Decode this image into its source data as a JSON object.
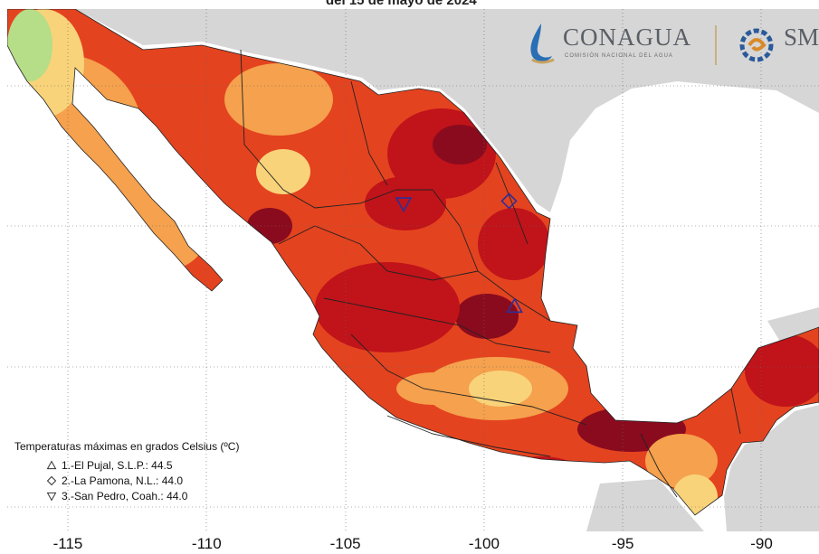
{
  "header": {
    "title_fragment": "del 15 de mayo de 2024"
  },
  "logos": {
    "conagua": {
      "name": "CONAGUA",
      "subtitle": "COMISIÓN NACIONAL DEL AGUA",
      "icon": "water-drop-icon"
    },
    "smn": {
      "name": "SMN",
      "icon": "sun-spiral-icon"
    }
  },
  "axis": {
    "longitude_ticks": [
      "-115",
      "-110",
      "-105",
      "-100",
      "-95",
      "-90"
    ]
  },
  "legend": {
    "title": "Temperaturas máximas en grados Celsius (ºC)",
    "items": [
      {
        "symbol": "triangle-up",
        "label": "1.-El Pujal, S.L.P.: 44.5",
        "lon": -98.9,
        "lat": 22.1
      },
      {
        "symbol": "diamond",
        "label": "2.-La Pamona, N.L.: 44.0",
        "lon": -99.1,
        "lat": 25.9
      },
      {
        "symbol": "triangle-down",
        "label": "3.-San Pedro, Coah.: 44.0",
        "lon": -102.9,
        "lat": 25.8
      }
    ]
  },
  "colors": {
    "ocean": "#ffffff",
    "land_outside": "#d6d6d6",
    "temp_low": "#b6dd88",
    "temp_mid_low": "#f8d37a",
    "temp_mid": "#f5a14d",
    "temp_high": "#e4431f",
    "temp_very_high": "#c1131a",
    "temp_extreme": "#8a0b1e",
    "marker": "#2c2f9a"
  }
}
